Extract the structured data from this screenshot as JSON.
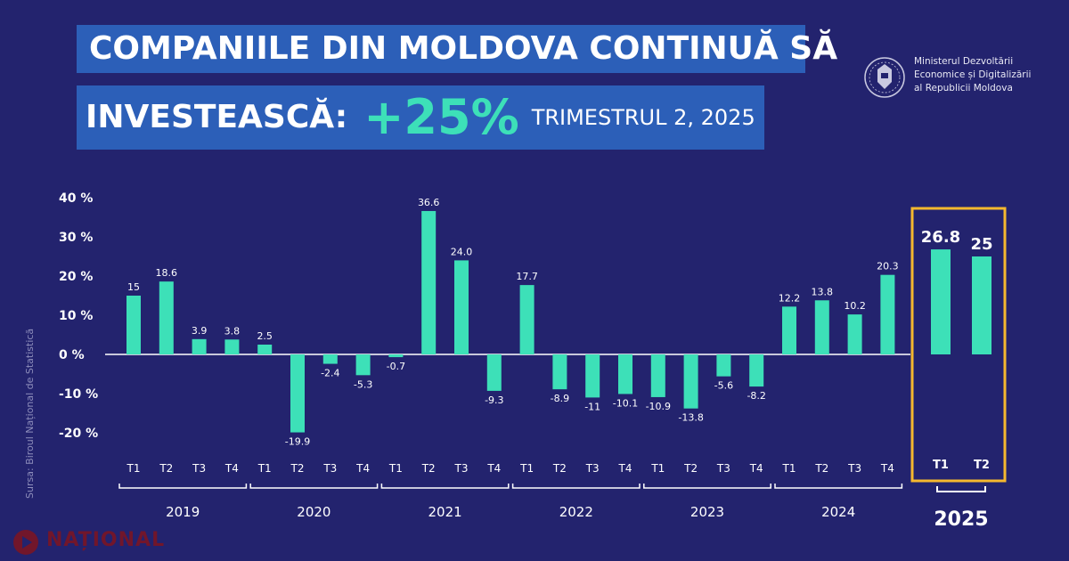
{
  "headline": {
    "line1": "COMPANIILE DIN MOLDOVA CONTINUĂ SĂ",
    "line2_word": "INVESTEASCĂ:",
    "line2_percent": "+25%",
    "line2_period": "TRIMESTRUL 2, 2025"
  },
  "ministry": {
    "line1": "Ministerul Dezvoltării",
    "line2": "Economice și Digitalizării",
    "line3": "al Republicii Moldova"
  },
  "source": "Sursa: Biroul Național de Statistică",
  "watermark": "NAȚIONAL",
  "colors": {
    "bar": "#3de0b8",
    "highlight": "#f5b82e",
    "background": "#23236e",
    "headline_box": "#2c5fb8"
  },
  "chart_data": {
    "type": "bar",
    "ylim": [
      -25,
      40
    ],
    "yticks": [
      40,
      30,
      20,
      10,
      0,
      -10,
      -20
    ],
    "ytick_labels": [
      "40 %",
      "30 %",
      "20 %",
      "10 %",
      "0 %",
      "-10 %",
      "-20 %"
    ],
    "grid": false,
    "groups": [
      {
        "year": "2019",
        "quarters": [
          "T1",
          "T2",
          "T3",
          "T4"
        ],
        "values": [
          15,
          18.6,
          3.9,
          3.8
        ],
        "labels": [
          "15",
          "18.6",
          "3.9",
          "3.8"
        ]
      },
      {
        "year": "2020",
        "quarters": [
          "T1",
          "T2",
          "T3",
          "T4"
        ],
        "values": [
          2.5,
          -19.9,
          -2.4,
          -5.3
        ],
        "labels": [
          "2.5",
          "-19.9",
          "-2.4",
          "-5.3"
        ]
      },
      {
        "year": "2021",
        "quarters": [
          "T1",
          "T2",
          "T3",
          "T4"
        ],
        "values": [
          -0.7,
          36.6,
          24.0,
          -9.3
        ],
        "labels": [
          "-0.7",
          "36.6",
          "24.0",
          "-9.3"
        ]
      },
      {
        "year": "2022",
        "quarters": [
          "T1",
          "T2",
          "T3",
          "T4"
        ],
        "values": [
          17.7,
          -8.9,
          -11,
          -10.1
        ],
        "labels": [
          "17.7",
          "-8.9",
          "-11",
          "-10.1"
        ]
      },
      {
        "year": "2023",
        "quarters": [
          "T1",
          "T2",
          "T3",
          "T4"
        ],
        "values": [
          -10.9,
          -13.8,
          -5.6,
          -8.2
        ],
        "labels": [
          "-10.9",
          "-13.8",
          "-5.6",
          "-8.2"
        ]
      },
      {
        "year": "2024",
        "quarters": [
          "T1",
          "T2",
          "T3",
          "T4"
        ],
        "values": [
          12.2,
          13.8,
          10.2,
          20.3
        ],
        "labels": [
          "12.2",
          "13.8",
          "10.2",
          "20.3"
        ]
      },
      {
        "year": "2025",
        "quarters": [
          "T1",
          "T2"
        ],
        "values": [
          26.8,
          25
        ],
        "labels": [
          "26.8",
          "25"
        ],
        "highlight": true
      }
    ]
  }
}
